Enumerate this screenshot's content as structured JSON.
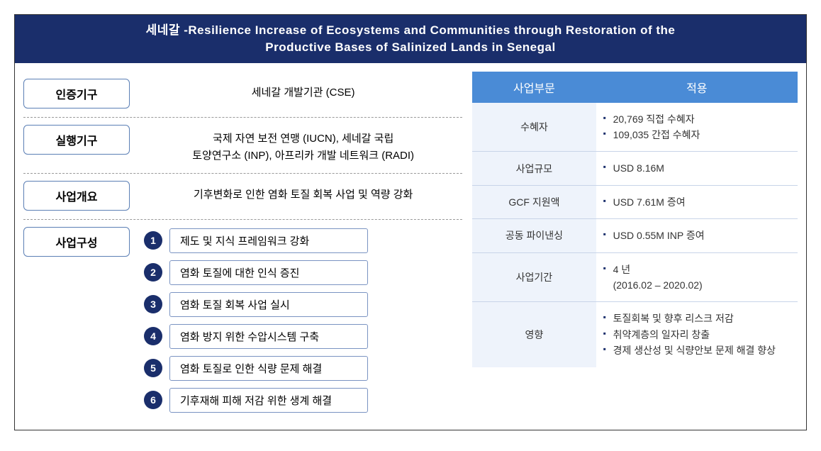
{
  "header": {
    "title_line1": "세네갈 -Resilience Increase of Ecosystems and Communities through Restoration of the",
    "title_line2": "Productive Bases of Salinized Lands in Senegal"
  },
  "colors": {
    "header_bg": "#1a2e6b",
    "label_border": "#5b7fb5",
    "circle_bg": "#1a2e6b",
    "th_bg": "#4a8bd6",
    "sector_bg": "#eef3fb",
    "bullet": "#1a2e6b"
  },
  "left": {
    "rows": [
      {
        "label": "인증기구",
        "value": "세네갈 개발기관 (CSE)"
      },
      {
        "label": "실행기구",
        "value": "국제 자연 보전 연맹 (IUCN), 세네갈 국립\n토양연구소 (INP), 아프리카 개발 네트워크 (RADI)"
      },
      {
        "label": "사업개요",
        "value": "기후변화로 인한 염화 토질 회복 사업 및 역량 강화"
      },
      {
        "label": "사업구성"
      }
    ],
    "components": [
      {
        "num": "1",
        "text": "제도 및 지식 프레임워크 강화"
      },
      {
        "num": "2",
        "text": "염화 토질에 대한 인식 증진"
      },
      {
        "num": "3",
        "text": "염화 토질 회복 사업 실시"
      },
      {
        "num": "4",
        "text": "염화 방지 위한 수압시스템 구축"
      },
      {
        "num": "5",
        "text": "염화 토질로 인한 식량 문제 해결"
      },
      {
        "num": "6",
        "text": "기후재해 피해 저감 위한 생계 해결"
      }
    ]
  },
  "right": {
    "headers": {
      "sector": "사업부문",
      "apply": "적용"
    },
    "rows": [
      {
        "sector": "수혜자",
        "items": [
          "20,769 직접 수혜자",
          "109,035 간접 수혜자"
        ]
      },
      {
        "sector": "사업규모",
        "items": [
          "USD 8.16M"
        ]
      },
      {
        "sector": "GCF 지원액",
        "items": [
          "USD  7.61M 증여"
        ]
      },
      {
        "sector": "공동 파이낸싱",
        "items": [
          "USD 0.55M INP 증여"
        ]
      },
      {
        "sector": "사업기간",
        "items": [
          "4 년\n(2016.02 – 2020.02)"
        ]
      },
      {
        "sector": "영향",
        "items": [
          "토질회복 및 향후 리스크 저감",
          "취약계층의 일자리 창출",
          "경제 생산성 및 식량안보 문제 해결 향상"
        ]
      }
    ]
  }
}
